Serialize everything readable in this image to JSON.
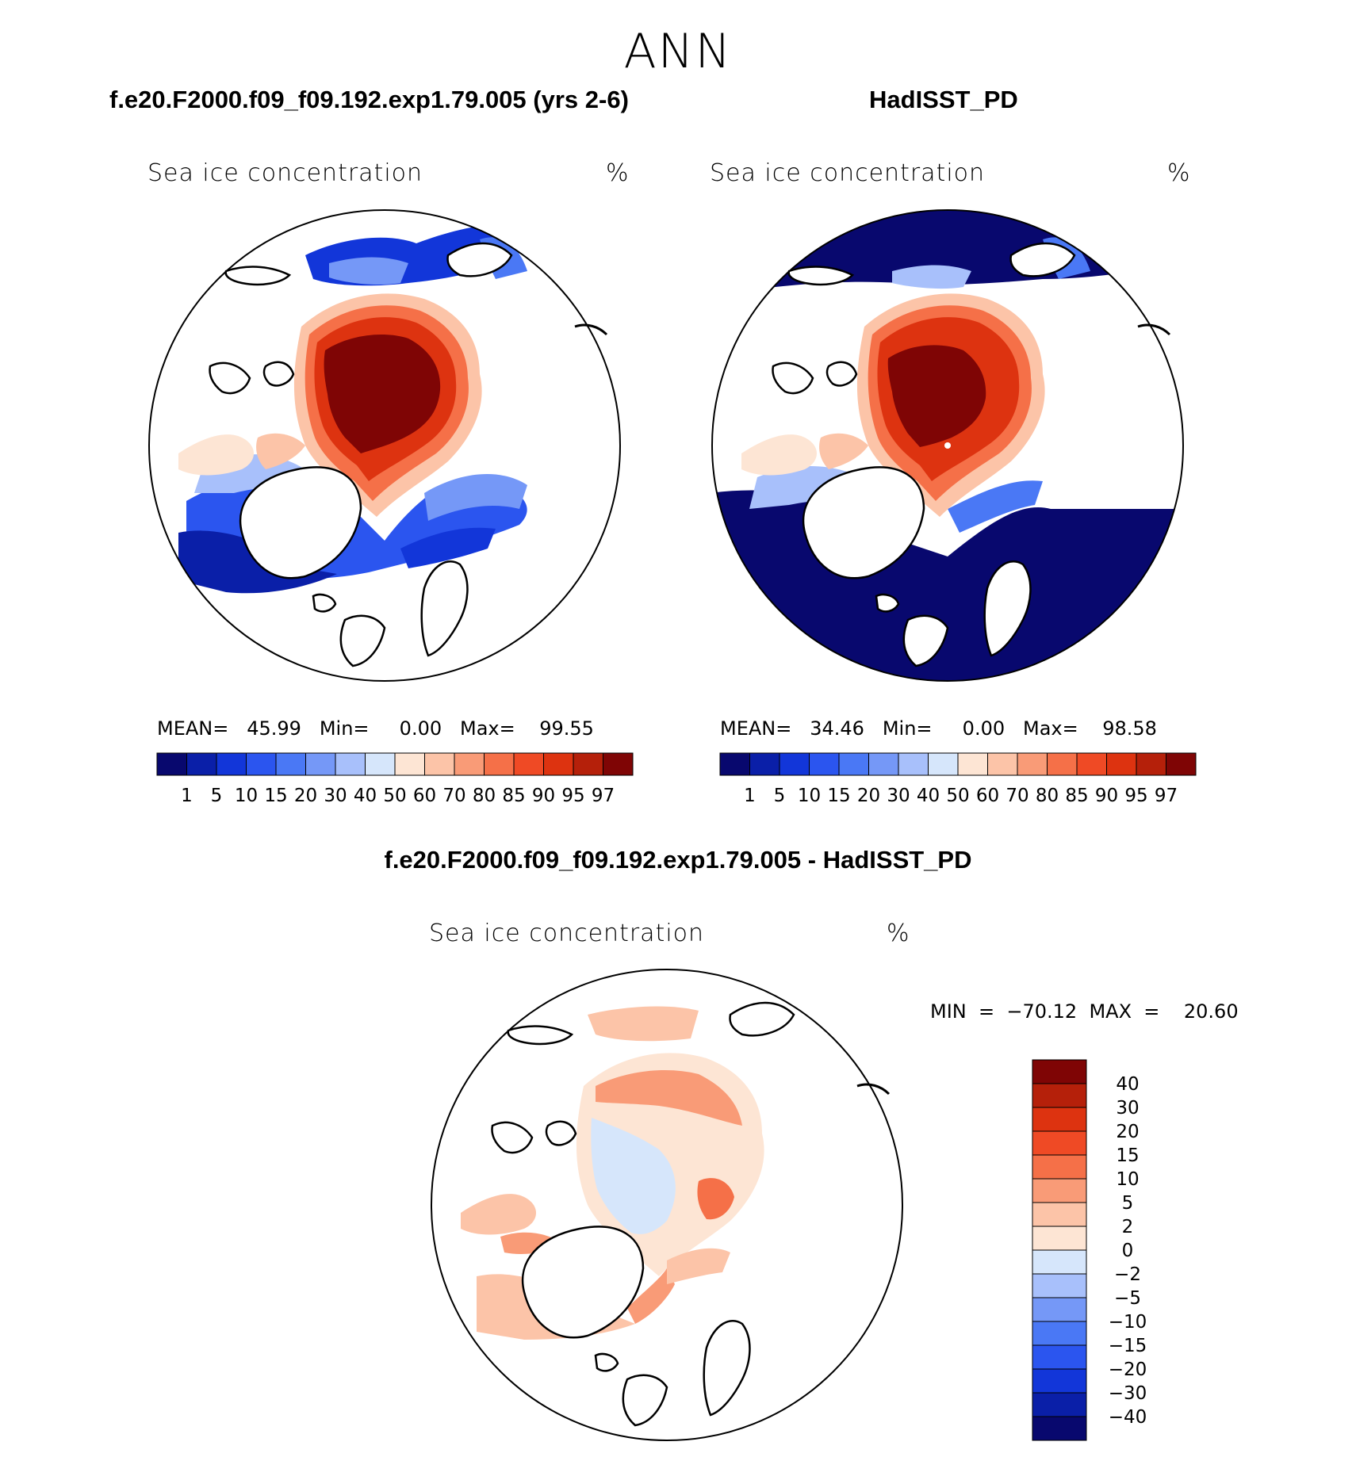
{
  "header": {
    "season": "ANN",
    "left_title": "f.e20.F2000.f09_f09.192.exp1.79.005 (yrs 2-6)",
    "right_title": "HadISST_PD",
    "diff_title": "f.e20.F2000.f09_f09.192.exp1.79.005 - HadISST_PD"
  },
  "panels": {
    "model": {
      "field": "Sea ice concentration",
      "units": "%",
      "stats": "MEAN=   45.99   Min=     0.00   Max=    99.55"
    },
    "obs": {
      "field": "Sea ice concentration",
      "units": "%",
      "stats": "MEAN=   34.46   Min=     0.00   Max=    98.58"
    },
    "diff": {
      "field": "Sea ice concentration",
      "units": "%",
      "stats": "MIN  =  −70.12  MAX  =    20.60"
    }
  },
  "colorbar_abs": {
    "colors": [
      "#08086e",
      "#0a1fa8",
      "#1236d9",
      "#2b55ef",
      "#4a78f5",
      "#7598f7",
      "#a8c0fb",
      "#d6e6fb",
      "#fde5d4",
      "#fcc4a8",
      "#f99b77",
      "#f57048",
      "#ef4a25",
      "#dd3310",
      "#b5200a",
      "#7f0505"
    ],
    "labels": [
      "1",
      "5",
      "10",
      "15",
      "20",
      "30",
      "40",
      "50",
      "60",
      "70",
      "80",
      "85",
      "90",
      "95",
      "97"
    ]
  },
  "colorbar_diff": {
    "colors": [
      "#08086e",
      "#0a1fa8",
      "#1236d9",
      "#2b55ef",
      "#4a78f5",
      "#7598f7",
      "#a8c0fb",
      "#d6e6fb",
      "#fde5d4",
      "#fcc4a8",
      "#f99b77",
      "#f57048",
      "#ef4a25",
      "#dd3310",
      "#b5200a",
      "#7f0505"
    ],
    "labels": [
      "−40",
      "−30",
      "−20",
      "−15",
      "−10",
      "−5",
      "−2",
      "0",
      "2",
      "5",
      "10",
      "15",
      "20",
      "30",
      "40"
    ]
  }
}
